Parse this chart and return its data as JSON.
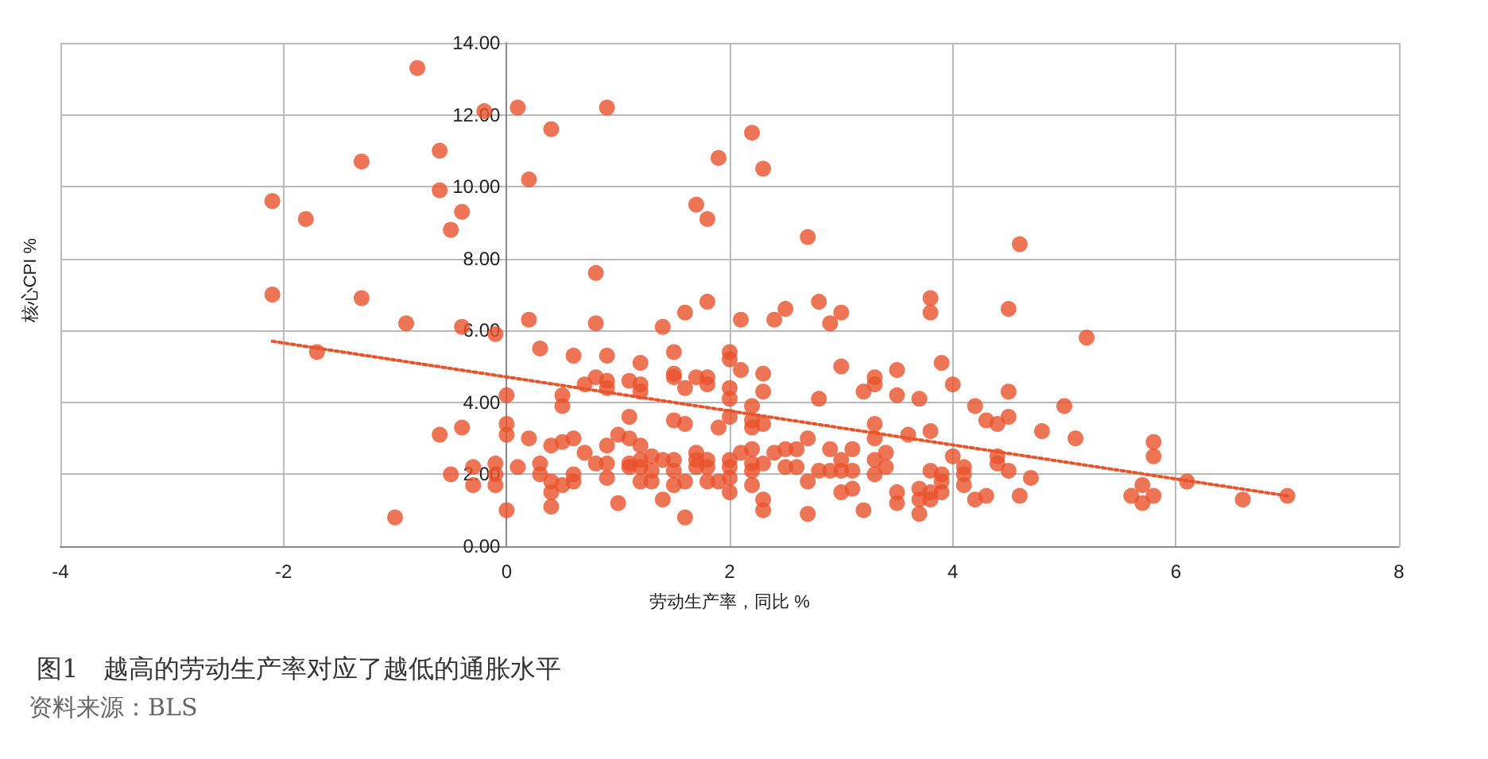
{
  "chart_data": {
    "type": "scatter",
    "title": "图1　越高的劳动生产率对应了越低的通胀水平",
    "xlabel": "劳动生产率，同比 %",
    "ylabel": "核心CPI %",
    "annotations": [
      "资料来源：BLS"
    ],
    "xlim": [
      -4,
      8
    ],
    "xticks": [
      -4,
      -2,
      0,
      2,
      4,
      6,
      8
    ],
    "ylim": [
      0,
      14
    ],
    "yticks": [
      {
        "value": 0,
        "label": "0.00"
      },
      {
        "value": 2,
        "label": "2.00"
      },
      {
        "value": 4,
        "label": "4.00"
      },
      {
        "value": 6,
        "label": "6.00"
      },
      {
        "value": 8,
        "label": "8.00"
      },
      {
        "value": 10,
        "label": "10.00"
      },
      {
        "value": 12,
        "label": "12.00"
      },
      {
        "value": 14,
        "label": "14.00"
      }
    ],
    "grid": true,
    "series": [
      {
        "type": "scatter",
        "color": "#e8532a",
        "marker": "circle",
        "x": [
          -2.1,
          -1.8,
          -1.3,
          -0.8,
          -0.6,
          -0.6,
          -0.4,
          -0.5,
          -0.2,
          0.1,
          0.9,
          0.4,
          0.2,
          0.8,
          -2.1,
          -1.3,
          -0.9,
          0.2,
          0.8,
          -0.4,
          -0.1,
          0.3,
          -1.7,
          0.6,
          0.9,
          1.2,
          0.7,
          0.8,
          0.9,
          0.9,
          1.1,
          1.2,
          0.5,
          0.5,
          0.0,
          1.1,
          -0.6,
          -0.4,
          0.0,
          0.0,
          0.2,
          0.4,
          0.5,
          0.6,
          0.7,
          0.9,
          1.0,
          1.1,
          1.2,
          1.2,
          0.1,
          -0.1,
          -0.1,
          -0.3,
          -0.5,
          -0.3,
          -0.1,
          0.3,
          0.3,
          0.4,
          0.4,
          0.5,
          0.6,
          0.6,
          0.8,
          0.9,
          0.9,
          1.1,
          1.1,
          1.2,
          0.4,
          1.0,
          0.0,
          -1.0,
          2.2,
          1.9,
          2.3,
          1.7,
          1.8,
          2.7,
          4.6,
          1.8,
          2.8,
          3.8,
          3.8,
          4.5,
          1.6,
          1.4,
          2.1,
          2.4,
          2.5,
          2.9,
          3.0,
          1.5,
          2.0,
          2.0,
          1.2,
          1.5,
          1.5,
          1.6,
          1.7,
          1.8,
          1.8,
          2.1,
          2.0,
          2.0,
          2.3,
          2.3,
          2.2,
          2.0,
          1.5,
          1.6,
          1.9,
          2.2,
          2.2,
          2.3,
          2.8,
          3.0,
          3.2,
          3.3,
          3.3,
          3.5,
          3.5,
          3.7,
          3.9,
          4.0,
          4.2,
          4.3,
          4.4,
          4.5,
          4.5,
          4.8,
          3.8,
          3.6,
          3.3,
          3.3,
          3.4,
          3.3,
          3.3,
          3.4,
          3.1,
          3.1,
          3.0,
          3.0,
          2.9,
          2.9,
          2.8,
          2.7,
          2.7,
          2.6,
          2.6,
          2.5,
          2.5,
          2.4,
          2.3,
          2.2,
          2.2,
          2.2,
          2.2,
          2.1,
          2.0,
          2.0,
          2.0,
          2.0,
          1.9,
          1.8,
          1.8,
          1.8,
          1.7,
          1.7,
          1.7,
          1.6,
          1.6,
          1.5,
          1.5,
          1.5,
          1.4,
          1.4,
          1.3,
          1.3,
          1.3,
          1.2,
          2.3,
          2.3,
          2.7,
          3.0,
          3.1,
          3.2,
          3.5,
          3.5,
          3.7,
          3.7,
          3.7,
          3.8,
          3.8,
          3.8,
          3.9,
          3.9,
          3.9,
          4.0,
          4.1,
          4.1,
          4.1,
          4.2,
          4.3,
          4.4,
          4.4,
          4.5,
          4.7,
          4.6,
          5.2,
          5.0,
          5.1,
          5.8,
          5.8,
          5.7,
          6.1,
          5.6,
          5.7,
          5.8,
          6.6,
          7.0
        ],
        "values": [
          9.6,
          9.1,
          10.7,
          13.3,
          11.0,
          9.9,
          9.3,
          8.8,
          12.1,
          12.2,
          12.2,
          11.6,
          10.2,
          7.6,
          7.0,
          6.9,
          6.2,
          6.3,
          6.2,
          6.1,
          5.9,
          5.5,
          5.4,
          5.3,
          5.3,
          5.1,
          4.5,
          4.7,
          4.6,
          4.4,
          4.6,
          4.3,
          4.2,
          3.9,
          4.2,
          3.6,
          3.1,
          3.3,
          3.4,
          3.1,
          3.0,
          2.8,
          2.9,
          3.0,
          2.6,
          2.8,
          3.1,
          3.0,
          2.8,
          2.4,
          2.2,
          2.3,
          2.0,
          2.2,
          2.0,
          1.7,
          1.7,
          2.3,
          2.0,
          1.8,
          1.5,
          1.7,
          2.0,
          1.8,
          2.3,
          2.3,
          1.9,
          2.3,
          2.2,
          1.8,
          1.1,
          1.2,
          1.0,
          0.8,
          11.5,
          10.8,
          10.5,
          9.5,
          9.1,
          8.6,
          8.4,
          6.8,
          6.8,
          6.9,
          6.5,
          6.6,
          6.5,
          6.1,
          6.3,
          6.3,
          6.6,
          6.2,
          6.5,
          5.4,
          5.4,
          5.2,
          4.5,
          4.8,
          4.7,
          4.4,
          4.7,
          4.7,
          4.5,
          4.9,
          4.4,
          4.1,
          4.8,
          4.3,
          3.9,
          3.6,
          3.5,
          3.4,
          3.3,
          3.5,
          3.3,
          3.4,
          4.1,
          5.0,
          4.3,
          4.7,
          4.5,
          4.9,
          4.2,
          4.1,
          5.1,
          4.5,
          3.9,
          3.5,
          3.4,
          3.6,
          4.3,
          3.2,
          3.2,
          3.1,
          3.4,
          3.0,
          2.6,
          2.4,
          2.0,
          2.2,
          2.7,
          2.1,
          2.4,
          2.1,
          2.7,
          2.1,
          2.1,
          3.0,
          1.8,
          2.7,
          2.2,
          2.7,
          2.2,
          2.6,
          2.3,
          2.7,
          2.3,
          2.1,
          1.7,
          2.6,
          2.4,
          2.2,
          1.9,
          1.5,
          1.8,
          2.4,
          2.2,
          1.8,
          2.6,
          2.4,
          2.2,
          1.8,
          0.8,
          2.4,
          2.1,
          1.7,
          2.4,
          1.3,
          2.5,
          2.1,
          1.8,
          2.2,
          1.3,
          1.0,
          0.9,
          1.5,
          1.6,
          1.0,
          1.5,
          1.2,
          1.6,
          1.3,
          0.9,
          2.1,
          1.5,
          1.3,
          2.0,
          1.8,
          1.5,
          2.5,
          2.2,
          2.0,
          1.7,
          1.3,
          1.4,
          2.5,
          2.3,
          2.1,
          1.9,
          1.4,
          5.8,
          3.9,
          3.0,
          2.9,
          2.5,
          1.7,
          1.8,
          1.4,
          1.2,
          1.4,
          1.3,
          1.4
        ]
      },
      {
        "type": "line",
        "color": "#e8532a",
        "marker": "none",
        "line_style": "dotted",
        "x": [
          -2.1,
          7.0
        ],
        "values": [
          5.7,
          1.4
        ]
      }
    ]
  }
}
